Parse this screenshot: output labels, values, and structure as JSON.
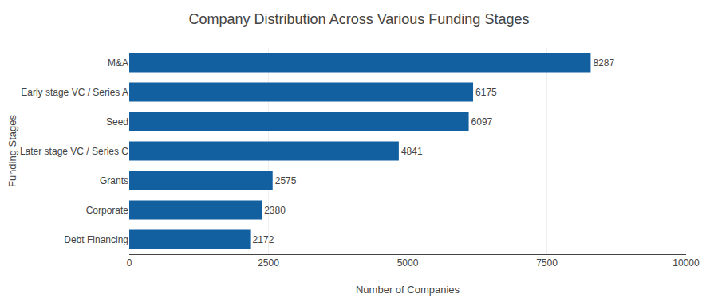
{
  "chart_data": {
    "type": "bar",
    "orientation": "horizontal",
    "title": "Company Distribution Across Various Funding Stages",
    "categories": [
      "Debt Financing",
      "Corporate",
      "Grants",
      "Later stage VC / Series C",
      "Seed",
      "Early stage VC / Series A",
      "M&A"
    ],
    "values": [
      2172,
      2380,
      2575,
      4841,
      6097,
      6175,
      8287
    ],
    "color": "#1260A0",
    "xlabel": "Number of Companies",
    "ylabel": "Funding Stages",
    "xlim": [
      0,
      10000
    ],
    "xticks": [
      0,
      2500,
      5000,
      7500,
      10000
    ],
    "grid": true,
    "data_labels": true
  }
}
